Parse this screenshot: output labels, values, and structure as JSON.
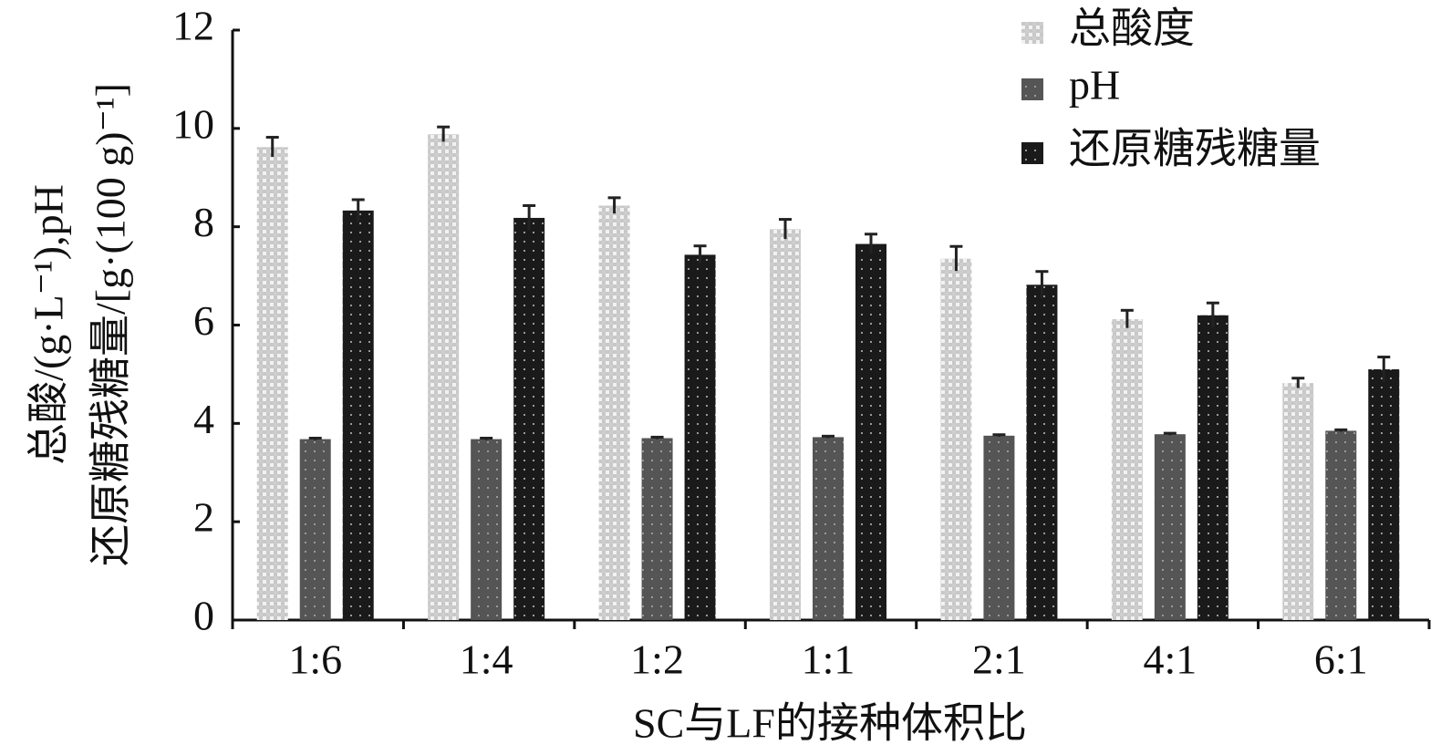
{
  "chart_data": {
    "type": "bar",
    "x_label": "SC与LF的接种体积比",
    "y_label": [
      "总酸/(g·L⁻¹),pH",
      "还原糖残糖量/[g·(100 g)⁻¹]"
    ],
    "categories": [
      "1:6",
      "1:4",
      "1:2",
      "1:1",
      "2:1",
      "4:1",
      "6:1"
    ],
    "series": [
      {
        "name": "总酸度",
        "color": "#c8c8c8",
        "pattern": "checker",
        "values": [
          9.62,
          9.88,
          8.43,
          7.95,
          7.35,
          6.12,
          4.82
        ],
        "errors": [
          0.2,
          0.15,
          0.16,
          0.2,
          0.25,
          0.18,
          0.1
        ]
      },
      {
        "name": "pH",
        "color": "#555555",
        "pattern": "dots",
        "values": [
          3.68,
          3.68,
          3.7,
          3.72,
          3.75,
          3.78,
          3.85
        ],
        "errors": [
          0.02,
          0.02,
          0.02,
          0.02,
          0.02,
          0.02,
          0.02
        ]
      },
      {
        "name": "还原糖残糖量",
        "color": "#1a1a1a",
        "pattern": "dots",
        "values": [
          8.33,
          8.18,
          7.43,
          7.65,
          6.82,
          6.2,
          5.1
        ],
        "errors": [
          0.22,
          0.25,
          0.18,
          0.2,
          0.27,
          0.25,
          0.25
        ]
      }
    ],
    "ylim": [
      0,
      12
    ],
    "yticks": [
      0,
      2,
      4,
      6,
      8,
      10,
      12
    ],
    "grid": false,
    "legend": "top-right"
  }
}
